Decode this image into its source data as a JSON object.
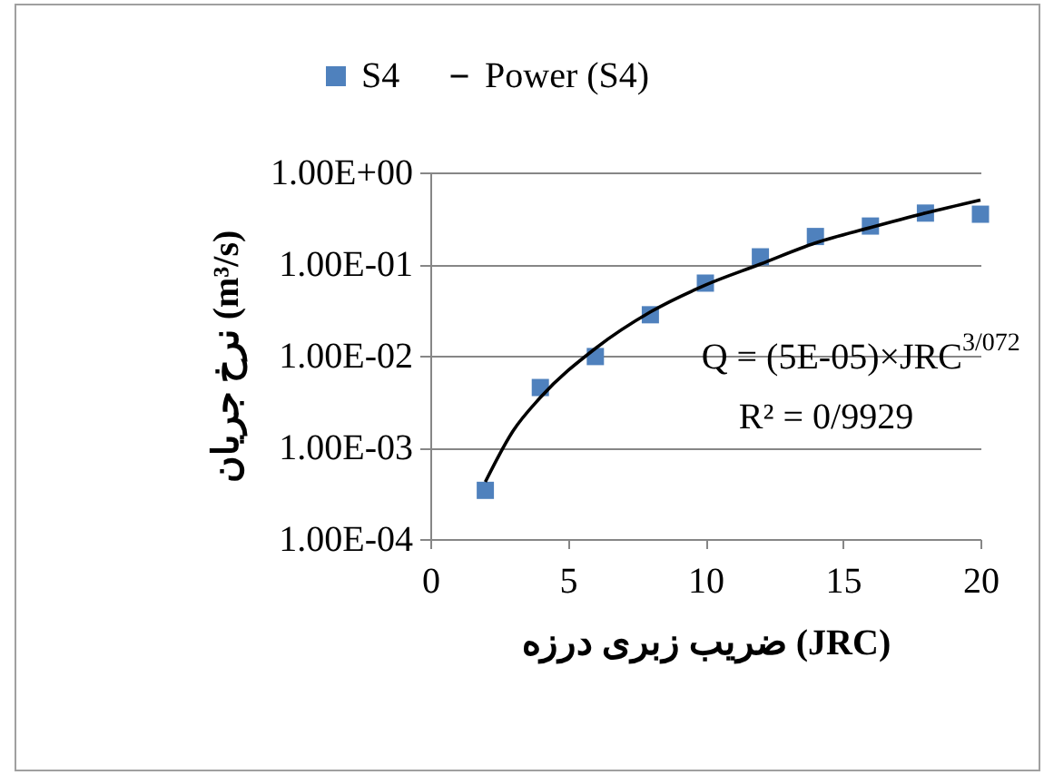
{
  "chart_data": {
    "type": "scatter",
    "xlabel": "ضریب زبری درزه (JRC)",
    "ylabel": "نرخ جریان (m³/s)",
    "x": [
      2,
      4,
      6,
      8,
      10,
      12,
      14,
      16,
      18,
      20
    ],
    "series": [
      {
        "name": "S4",
        "color": "#4f81bd",
        "marker": "square",
        "values": [
          0.00034,
          0.0045,
          0.0098,
          0.028,
          0.062,
          0.12,
          0.2,
          0.26,
          0.36,
          0.35
        ]
      },
      {
        "name": "Power (S4)",
        "type": "line",
        "color": "#000000",
        "x": [
          2,
          3,
          4,
          6,
          8,
          10,
          12,
          14,
          16,
          18,
          20
        ],
        "values": [
          0.00042,
          0.0015,
          0.0035,
          0.012,
          0.03,
          0.059,
          0.1,
          0.17,
          0.25,
          0.36,
          0.5
        ]
      }
    ],
    "annotations": [
      "Q = (5E-05)×JRC$^{3/072}$",
      "R² = 0/9929"
    ],
    "log": "y",
    "xlim": [
      0,
      20
    ],
    "xticks": [
      0,
      5,
      10,
      15,
      20
    ],
    "ylim": [
      0.0001,
      1
    ],
    "yticks": [
      {
        "value": 0.0001,
        "label": "1.00E-04"
      },
      {
        "value": 0.001,
        "label": "1.00E-03"
      },
      {
        "value": 0.01,
        "label": "1.00E-02"
      },
      {
        "value": 0.1,
        "label": "1.00E-01"
      },
      {
        "value": 1,
        "label": "1.00E+00"
      }
    ],
    "grid": "y",
    "legend": "top"
  }
}
